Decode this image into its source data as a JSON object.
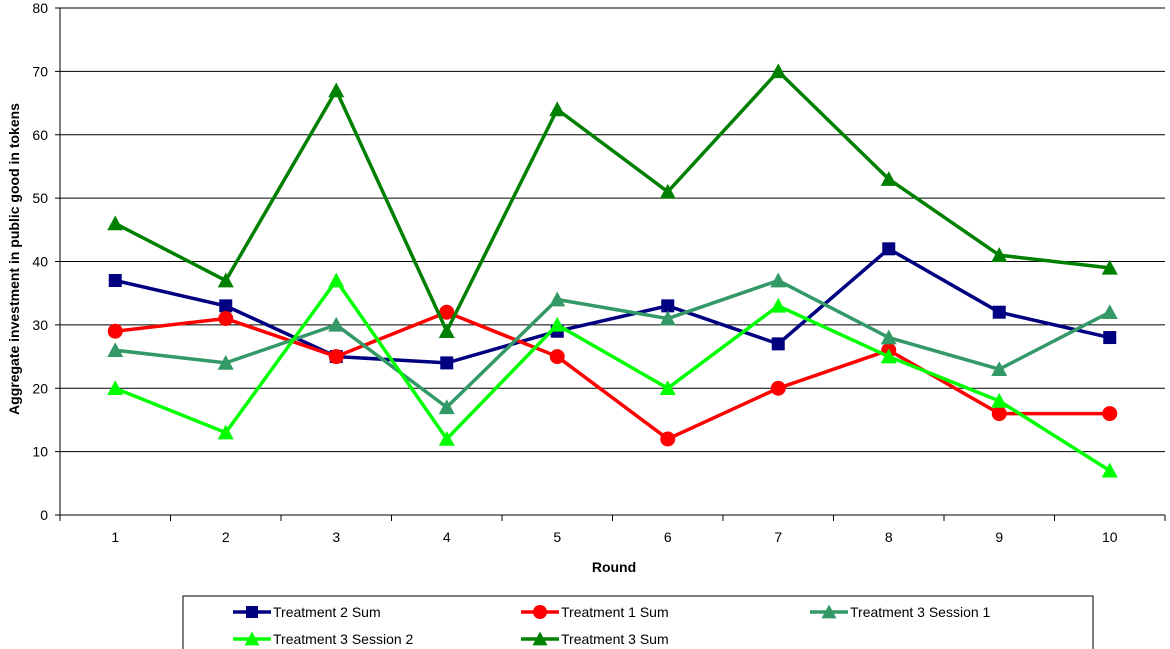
{
  "chart_data": {
    "type": "line",
    "title": "",
    "xlabel": "Round",
    "ylabel": "Aggregate investment in public good in tokens",
    "categories": [
      "1",
      "2",
      "3",
      "4",
      "5",
      "6",
      "7",
      "8",
      "9",
      "10"
    ],
    "ylim": [
      0,
      80
    ],
    "yticks": [
      0,
      10,
      20,
      30,
      40,
      50,
      60,
      70,
      80
    ],
    "grid": "horizontal",
    "legend_position": "bottom",
    "series": [
      {
        "name": "Treatment 2 Sum",
        "color": "#000080",
        "marker": "square",
        "values": [
          37,
          33,
          25,
          24,
          29,
          33,
          27,
          42,
          32,
          28
        ]
      },
      {
        "name": "Treatment 1 Sum",
        "color": "#ff0000",
        "marker": "circle",
        "values": [
          29,
          31,
          25,
          32,
          25,
          12,
          20,
          26,
          16,
          16
        ]
      },
      {
        "name": "Treatment 3 Session 1",
        "color": "#339966",
        "marker": "triangle",
        "values": [
          26,
          24,
          30,
          17,
          34,
          31,
          37,
          28,
          23,
          32
        ]
      },
      {
        "name": "Treatment 3 Session 2",
        "color": "#00ff00",
        "marker": "triangle",
        "values": [
          20,
          13,
          37,
          12,
          30,
          20,
          33,
          25,
          18,
          7
        ]
      },
      {
        "name": "Treatment 3 Sum",
        "color": "#008000",
        "marker": "triangle",
        "values": [
          46,
          37,
          67,
          29,
          64,
          51,
          70,
          53,
          41,
          39
        ]
      }
    ]
  }
}
